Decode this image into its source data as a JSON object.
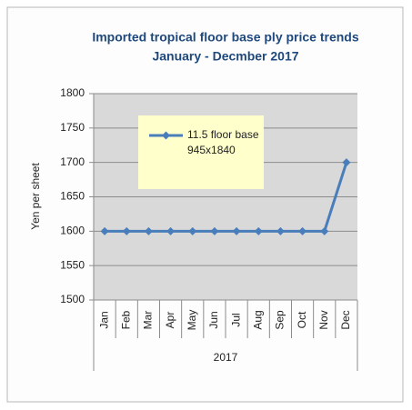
{
  "chart_data": {
    "type": "line",
    "title": "Imported tropical floor base ply price trends",
    "subtitle": "January - Decmber 2017",
    "y_label": "Yen per sheet",
    "x_label": "2017",
    "categories": [
      "Jan",
      "Feb",
      "Mar",
      "Apr",
      "May",
      "Jun",
      "Jul",
      "Aug",
      "Sep",
      "Oct",
      "Nov",
      "Dec"
    ],
    "series": [
      {
        "name": "11.5 floor base\n945x1840",
        "color": "#4a7ebb",
        "values": [
          1600,
          1600,
          1600,
          1600,
          1600,
          1600,
          1600,
          1600,
          1600,
          1600,
          1600,
          1700
        ]
      }
    ],
    "ylim": [
      1500,
      1800
    ],
    "yticks": [
      1500,
      1550,
      1600,
      1650,
      1700,
      1750,
      1800
    ],
    "grid": true,
    "plot_color": "#d9d9d9",
    "legend_color": "#ffffcc"
  }
}
